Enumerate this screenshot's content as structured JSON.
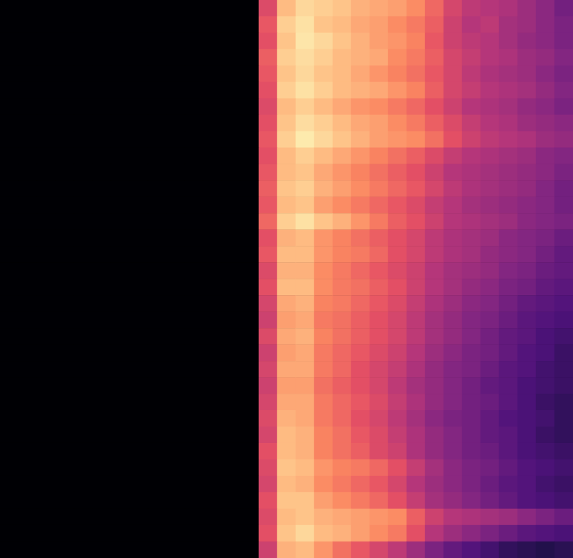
{
  "chart_data": {
    "type": "heatmap",
    "color": "magma",
    "zlim": [
      0,
      1
    ],
    "tick_labels": false,
    "grid": false,
    "values": [
      [
        0,
        0,
        0,
        0,
        0,
        0,
        0,
        0,
        0,
        0,
        0,
        0,
        0,
        0,
        0.6,
        0.86,
        0.92,
        0.9,
        0.88,
        0.84,
        0.82,
        0.8,
        0.76,
        0.68,
        0.58,
        0.52,
        0.5,
        0.48,
        0.44,
        0.4,
        0.34
      ],
      [
        0,
        0,
        0,
        0,
        0,
        0,
        0,
        0,
        0,
        0,
        0,
        0,
        0,
        0,
        0.64,
        0.9,
        0.94,
        0.88,
        0.86,
        0.82,
        0.8,
        0.76,
        0.72,
        0.66,
        0.56,
        0.5,
        0.52,
        0.46,
        0.44,
        0.4,
        0.36
      ],
      [
        0,
        0,
        0,
        0,
        0,
        0,
        0,
        0,
        0,
        0,
        0,
        0,
        0,
        0,
        0.62,
        0.88,
        0.95,
        0.92,
        0.88,
        0.84,
        0.8,
        0.78,
        0.74,
        0.64,
        0.56,
        0.52,
        0.5,
        0.46,
        0.42,
        0.4,
        0.36
      ],
      [
        0,
        0,
        0,
        0,
        0,
        0,
        0,
        0,
        0,
        0,
        0,
        0,
        0,
        0,
        0.66,
        0.9,
        0.93,
        0.9,
        0.86,
        0.84,
        0.82,
        0.76,
        0.72,
        0.66,
        0.58,
        0.54,
        0.5,
        0.48,
        0.44,
        0.42,
        0.38
      ],
      [
        0,
        0,
        0,
        0,
        0,
        0,
        0,
        0,
        0,
        0,
        0,
        0,
        0,
        0,
        0.64,
        0.88,
        0.92,
        0.88,
        0.86,
        0.82,
        0.78,
        0.74,
        0.7,
        0.64,
        0.58,
        0.52,
        0.48,
        0.46,
        0.44,
        0.4,
        0.36
      ],
      [
        0,
        0,
        0,
        0,
        0,
        0,
        0,
        0,
        0,
        0,
        0,
        0,
        0,
        0,
        0.62,
        0.9,
        0.94,
        0.9,
        0.86,
        0.84,
        0.82,
        0.78,
        0.74,
        0.66,
        0.58,
        0.54,
        0.5,
        0.48,
        0.46,
        0.42,
        0.38
      ],
      [
        0,
        0,
        0,
        0,
        0,
        0,
        0,
        0,
        0,
        0,
        0,
        0,
        0,
        0,
        0.6,
        0.86,
        0.9,
        0.86,
        0.82,
        0.78,
        0.76,
        0.72,
        0.68,
        0.62,
        0.56,
        0.5,
        0.48,
        0.46,
        0.42,
        0.4,
        0.36
      ],
      [
        0,
        0,
        0,
        0,
        0,
        0,
        0,
        0,
        0,
        0,
        0,
        0,
        0,
        0,
        0.62,
        0.88,
        0.93,
        0.9,
        0.86,
        0.82,
        0.8,
        0.76,
        0.72,
        0.66,
        0.6,
        0.54,
        0.5,
        0.48,
        0.44,
        0.42,
        0.4
      ],
      [
        0,
        0,
        0,
        0,
        0,
        0,
        0,
        0,
        0,
        0,
        0,
        0,
        0,
        0,
        0.64,
        0.9,
        0.96,
        0.92,
        0.88,
        0.84,
        0.8,
        0.78,
        0.76,
        0.7,
        0.62,
        0.56,
        0.52,
        0.5,
        0.48,
        0.44,
        0.42
      ],
      [
        0,
        0,
        0,
        0,
        0,
        0,
        0,
        0,
        0,
        0,
        0,
        0,
        0,
        0,
        0.62,
        0.86,
        0.9,
        0.86,
        0.82,
        0.78,
        0.74,
        0.7,
        0.66,
        0.6,
        0.54,
        0.5,
        0.48,
        0.46,
        0.44,
        0.4,
        0.38
      ],
      [
        0,
        0,
        0,
        0,
        0,
        0,
        0,
        0,
        0,
        0,
        0,
        0,
        0,
        0,
        0.64,
        0.86,
        0.88,
        0.82,
        0.78,
        0.74,
        0.7,
        0.66,
        0.62,
        0.56,
        0.5,
        0.48,
        0.46,
        0.44,
        0.42,
        0.4,
        0.36
      ],
      [
        0,
        0,
        0,
        0,
        0,
        0,
        0,
        0,
        0,
        0,
        0,
        0,
        0,
        0,
        0.66,
        0.88,
        0.9,
        0.84,
        0.8,
        0.76,
        0.72,
        0.68,
        0.64,
        0.58,
        0.52,
        0.48,
        0.46,
        0.44,
        0.42,
        0.38,
        0.34
      ],
      [
        0,
        0,
        0,
        0,
        0,
        0,
        0,
        0,
        0,
        0,
        0,
        0,
        0,
        0,
        0.64,
        0.86,
        0.88,
        0.8,
        0.76,
        0.72,
        0.68,
        0.64,
        0.6,
        0.54,
        0.5,
        0.46,
        0.44,
        0.42,
        0.4,
        0.38,
        0.34
      ],
      [
        0,
        0,
        0,
        0,
        0,
        0,
        0,
        0,
        0,
        0,
        0,
        0,
        0,
        0,
        0.68,
        0.9,
        0.94,
        0.88,
        0.84,
        0.78,
        0.72,
        0.66,
        0.62,
        0.56,
        0.5,
        0.48,
        0.46,
        0.44,
        0.4,
        0.38,
        0.36
      ],
      [
        0,
        0,
        0,
        0,
        0,
        0,
        0,
        0,
        0,
        0,
        0,
        0,
        0,
        0,
        0.62,
        0.84,
        0.86,
        0.78,
        0.74,
        0.7,
        0.66,
        0.62,
        0.58,
        0.52,
        0.48,
        0.46,
        0.44,
        0.4,
        0.38,
        0.36,
        0.32
      ],
      [
        0,
        0,
        0,
        0,
        0,
        0,
        0,
        0,
        0,
        0,
        0,
        0,
        0,
        0,
        0.64,
        0.86,
        0.86,
        0.78,
        0.74,
        0.72,
        0.68,
        0.62,
        0.58,
        0.52,
        0.48,
        0.46,
        0.42,
        0.4,
        0.38,
        0.34,
        0.3
      ],
      [
        0,
        0,
        0,
        0,
        0,
        0,
        0,
        0,
        0,
        0,
        0,
        0,
        0,
        0,
        0.6,
        0.84,
        0.84,
        0.76,
        0.72,
        0.68,
        0.64,
        0.6,
        0.56,
        0.5,
        0.46,
        0.44,
        0.42,
        0.38,
        0.36,
        0.32,
        0.3
      ],
      [
        0,
        0,
        0,
        0,
        0,
        0,
        0,
        0,
        0,
        0,
        0,
        0,
        0,
        0,
        0.62,
        0.86,
        0.86,
        0.76,
        0.72,
        0.7,
        0.66,
        0.62,
        0.56,
        0.5,
        0.46,
        0.42,
        0.4,
        0.36,
        0.34,
        0.3,
        0.28
      ],
      [
        0,
        0,
        0,
        0,
        0,
        0,
        0,
        0,
        0,
        0,
        0,
        0,
        0,
        0,
        0.58,
        0.82,
        0.84,
        0.74,
        0.72,
        0.68,
        0.64,
        0.6,
        0.54,
        0.48,
        0.44,
        0.4,
        0.38,
        0.34,
        0.3,
        0.28,
        0.26
      ],
      [
        0,
        0,
        0,
        0,
        0,
        0,
        0,
        0,
        0,
        0,
        0,
        0,
        0,
        0,
        0.56,
        0.8,
        0.82,
        0.72,
        0.7,
        0.66,
        0.62,
        0.58,
        0.52,
        0.46,
        0.42,
        0.38,
        0.36,
        0.32,
        0.28,
        0.26,
        0.24
      ],
      [
        0,
        0,
        0,
        0,
        0,
        0,
        0,
        0,
        0,
        0,
        0,
        0,
        0,
        0,
        0.6,
        0.82,
        0.84,
        0.74,
        0.7,
        0.66,
        0.62,
        0.58,
        0.52,
        0.46,
        0.42,
        0.38,
        0.34,
        0.3,
        0.28,
        0.24,
        0.22
      ],
      [
        0,
        0,
        0,
        0,
        0,
        0,
        0,
        0,
        0,
        0,
        0,
        0,
        0,
        0,
        0.56,
        0.8,
        0.82,
        0.72,
        0.68,
        0.64,
        0.6,
        0.56,
        0.5,
        0.44,
        0.4,
        0.36,
        0.34,
        0.3,
        0.26,
        0.24,
        0.2
      ],
      [
        0,
        0,
        0,
        0,
        0,
        0,
        0,
        0,
        0,
        0,
        0,
        0,
        0,
        0,
        0.58,
        0.82,
        0.82,
        0.72,
        0.68,
        0.62,
        0.58,
        0.54,
        0.48,
        0.42,
        0.38,
        0.36,
        0.32,
        0.28,
        0.26,
        0.22,
        0.2
      ],
      [
        0,
        0,
        0,
        0,
        0,
        0,
        0,
        0,
        0,
        0,
        0,
        0,
        0,
        0,
        0.56,
        0.8,
        0.8,
        0.7,
        0.66,
        0.62,
        0.58,
        0.52,
        0.46,
        0.42,
        0.38,
        0.34,
        0.3,
        0.28,
        0.24,
        0.22,
        0.2
      ],
      [
        0,
        0,
        0,
        0,
        0,
        0,
        0,
        0,
        0,
        0,
        0,
        0,
        0,
        0,
        0.58,
        0.82,
        0.82,
        0.72,
        0.68,
        0.64,
        0.6,
        0.54,
        0.48,
        0.42,
        0.38,
        0.34,
        0.32,
        0.28,
        0.24,
        0.2,
        0.18
      ],
      [
        0,
        0,
        0,
        0,
        0,
        0,
        0,
        0,
        0,
        0,
        0,
        0,
        0,
        0,
        0.6,
        0.84,
        0.82,
        0.72,
        0.68,
        0.62,
        0.58,
        0.52,
        0.46,
        0.4,
        0.36,
        0.34,
        0.3,
        0.26,
        0.24,
        0.22,
        0.18
      ],
      [
        0,
        0,
        0,
        0,
        0,
        0,
        0,
        0,
        0,
        0,
        0,
        0,
        0,
        0,
        0.58,
        0.86,
        0.84,
        0.74,
        0.7,
        0.64,
        0.6,
        0.54,
        0.48,
        0.42,
        0.38,
        0.34,
        0.3,
        0.28,
        0.24,
        0.2,
        0.18
      ],
      [
        0,
        0,
        0,
        0,
        0,
        0,
        0,
        0,
        0,
        0,
        0,
        0,
        0,
        0,
        0.62,
        0.86,
        0.84,
        0.74,
        0.7,
        0.66,
        0.6,
        0.56,
        0.48,
        0.42,
        0.38,
        0.34,
        0.32,
        0.28,
        0.24,
        0.22,
        0.2
      ],
      [
        0,
        0,
        0,
        0,
        0,
        0,
        0,
        0,
        0,
        0,
        0,
        0,
        0,
        0,
        0.6,
        0.88,
        0.86,
        0.78,
        0.74,
        0.72,
        0.68,
        0.62,
        0.54,
        0.46,
        0.4,
        0.36,
        0.34,
        0.3,
        0.26,
        0.24,
        0.22
      ],
      [
        0,
        0,
        0,
        0,
        0,
        0,
        0,
        0,
        0,
        0,
        0,
        0,
        0,
        0,
        0.58,
        0.86,
        0.84,
        0.76,
        0.72,
        0.68,
        0.64,
        0.58,
        0.5,
        0.44,
        0.4,
        0.36,
        0.32,
        0.28,
        0.26,
        0.22,
        0.2
      ],
      [
        0,
        0,
        0,
        0,
        0,
        0,
        0,
        0,
        0,
        0,
        0,
        0,
        0,
        0,
        0.62,
        0.88,
        0.88,
        0.8,
        0.76,
        0.72,
        0.68,
        0.62,
        0.54,
        0.46,
        0.42,
        0.38,
        0.34,
        0.3,
        0.26,
        0.24,
        0.22
      ],
      [
        0,
        0,
        0,
        0,
        0,
        0,
        0,
        0,
        0,
        0,
        0,
        0,
        0,
        0,
        0.6,
        0.86,
        0.88,
        0.84,
        0.82,
        0.8,
        0.78,
        0.76,
        0.66,
        0.56,
        0.5,
        0.48,
        0.46,
        0.44,
        0.4,
        0.36,
        0.32
      ],
      [
        0,
        0,
        0,
        0,
        0,
        0,
        0,
        0,
        0,
        0,
        0,
        0,
        0,
        0,
        0.62,
        0.88,
        0.92,
        0.86,
        0.84,
        0.8,
        0.76,
        0.72,
        0.62,
        0.5,
        0.44,
        0.4,
        0.36,
        0.32,
        0.28,
        0.26,
        0.24
      ],
      [
        0,
        0,
        0,
        0,
        0,
        0,
        0,
        0,
        0,
        0,
        0,
        0,
        0,
        0,
        0.56,
        0.84,
        0.86,
        0.78,
        0.7,
        0.64,
        0.58,
        0.52,
        0.44,
        0.36,
        0.3,
        0.26,
        0.22,
        0.18,
        0.16,
        0.14,
        0.16
      ]
    ]
  }
}
